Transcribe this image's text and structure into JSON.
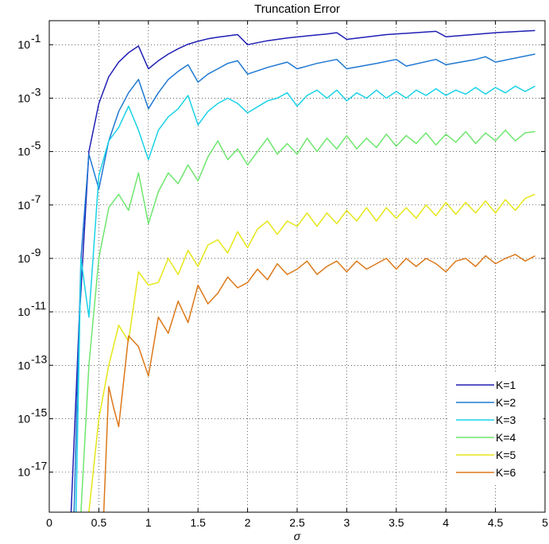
{
  "chart_data": {
    "type": "line",
    "title": "Truncation Error",
    "xlabel": "σ",
    "ylabel": "",
    "xlim": [
      0,
      5
    ],
    "ylim_log10": [
      -18.5,
      -0.1
    ],
    "yscale": "log",
    "grid": true,
    "legend_position": "bottom-right",
    "x_ticks": [
      "0",
      "0.5",
      "1",
      "1.5",
      "2",
      "2.5",
      "3",
      "3.5",
      "4",
      "4.5",
      "5"
    ],
    "y_ticks": [
      "10^-1",
      "10^-3",
      "10^-5",
      "10^-7",
      "10^-9",
      "10^-11",
      "10^-13",
      "10^-15",
      "10^-17"
    ],
    "series": [
      {
        "name": "K=1",
        "color": "#1f1fb4",
        "points": [
          [
            0.22,
            -18.5
          ],
          [
            0.3,
            -11.5
          ],
          [
            0.4,
            -5.0
          ],
          [
            0.5,
            -3.2
          ],
          [
            0.6,
            -2.2
          ],
          [
            0.7,
            -1.65
          ],
          [
            0.8,
            -1.3
          ],
          [
            0.9,
            -1.05
          ],
          [
            1.0,
            -1.9
          ],
          [
            1.1,
            -1.6
          ],
          [
            1.2,
            -1.35
          ],
          [
            1.3,
            -1.15
          ],
          [
            1.4,
            -0.98
          ],
          [
            1.5,
            -0.87
          ],
          [
            1.6,
            -0.78
          ],
          [
            1.7,
            -0.72
          ],
          [
            1.8,
            -0.67
          ],
          [
            1.9,
            -0.62
          ],
          [
            2.0,
            -1.0
          ],
          [
            2.2,
            -0.85
          ],
          [
            2.4,
            -0.75
          ],
          [
            2.6,
            -0.67
          ],
          [
            2.8,
            -0.6
          ],
          [
            2.9,
            -0.55
          ],
          [
            3.0,
            -0.8
          ],
          [
            3.4,
            -0.62
          ],
          [
            3.9,
            -0.5
          ],
          [
            4.0,
            -0.7
          ],
          [
            4.5,
            -0.55
          ],
          [
            4.9,
            -0.47
          ]
        ]
      },
      {
        "name": "K=2",
        "color": "#1f78d2",
        "points": [
          [
            0.25,
            -18.5
          ],
          [
            0.32,
            -9.0
          ],
          [
            0.4,
            -5.1
          ],
          [
            0.5,
            -6.4
          ],
          [
            0.6,
            -4.6
          ],
          [
            0.7,
            -3.5
          ],
          [
            0.8,
            -2.8
          ],
          [
            0.9,
            -2.3
          ],
          [
            1.0,
            -3.4
          ],
          [
            1.1,
            -2.8
          ],
          [
            1.2,
            -2.3
          ],
          [
            1.3,
            -2.0
          ],
          [
            1.4,
            -1.75
          ],
          [
            1.5,
            -2.4
          ],
          [
            1.6,
            -2.1
          ],
          [
            1.7,
            -1.9
          ],
          [
            1.8,
            -1.7
          ],
          [
            1.9,
            -1.6
          ],
          [
            2.0,
            -2.1
          ],
          [
            2.2,
            -1.85
          ],
          [
            2.4,
            -1.65
          ],
          [
            2.5,
            -1.9
          ],
          [
            2.7,
            -1.7
          ],
          [
            2.9,
            -1.55
          ],
          [
            3.0,
            -1.9
          ],
          [
            3.3,
            -1.7
          ],
          [
            3.5,
            -1.55
          ],
          [
            3.6,
            -1.8
          ],
          [
            3.9,
            -1.55
          ],
          [
            4.0,
            -1.75
          ],
          [
            4.3,
            -1.55
          ],
          [
            4.4,
            -1.45
          ],
          [
            4.5,
            -1.65
          ],
          [
            4.9,
            -1.35
          ]
        ]
      },
      {
        "name": "K=3",
        "color": "#19d2e6",
        "points": [
          [
            0.27,
            -18.5
          ],
          [
            0.32,
            -9.0
          ],
          [
            0.4,
            -11.2
          ],
          [
            0.5,
            -5.9
          ],
          [
            0.6,
            -4.6
          ],
          [
            0.7,
            -4.1
          ],
          [
            0.8,
            -3.3
          ],
          [
            0.9,
            -4.2
          ],
          [
            1.0,
            -5.3
          ],
          [
            1.1,
            -4.2
          ],
          [
            1.2,
            -3.7
          ],
          [
            1.3,
            -3.4
          ],
          [
            1.4,
            -2.9
          ],
          [
            1.5,
            -4.0
          ],
          [
            1.6,
            -3.5
          ],
          [
            1.7,
            -3.2
          ],
          [
            1.8,
            -3.0
          ],
          [
            1.9,
            -3.2
          ],
          [
            2.0,
            -3.55
          ],
          [
            2.2,
            -3.1
          ],
          [
            2.3,
            -3.0
          ],
          [
            2.4,
            -2.8
          ],
          [
            2.5,
            -3.3
          ],
          [
            2.6,
            -2.9
          ],
          [
            2.7,
            -2.7
          ],
          [
            2.8,
            -3.0
          ],
          [
            2.9,
            -2.7
          ],
          [
            3.0,
            -3.1
          ],
          [
            3.1,
            -2.8
          ],
          [
            3.2,
            -3.0
          ],
          [
            3.3,
            -2.7
          ],
          [
            3.4,
            -3.0
          ],
          [
            3.5,
            -2.75
          ],
          [
            3.6,
            -3.0
          ],
          [
            3.7,
            -2.7
          ],
          [
            3.8,
            -2.9
          ],
          [
            3.9,
            -2.65
          ],
          [
            4.0,
            -2.9
          ],
          [
            4.1,
            -2.7
          ],
          [
            4.2,
            -2.85
          ],
          [
            4.3,
            -2.6
          ],
          [
            4.4,
            -2.85
          ],
          [
            4.5,
            -2.6
          ],
          [
            4.6,
            -2.8
          ],
          [
            4.7,
            -2.55
          ],
          [
            4.8,
            -2.75
          ],
          [
            4.9,
            -2.55
          ]
        ]
      },
      {
        "name": "K=4",
        "color": "#6ee66e",
        "points": [
          [
            0.32,
            -18.5
          ],
          [
            0.4,
            -13.0
          ],
          [
            0.5,
            -9.0
          ],
          [
            0.6,
            -7.1
          ],
          [
            0.7,
            -6.6
          ],
          [
            0.8,
            -7.2
          ],
          [
            0.9,
            -5.8
          ],
          [
            1.0,
            -7.7
          ],
          [
            1.1,
            -6.5
          ],
          [
            1.2,
            -5.8
          ],
          [
            1.3,
            -6.2
          ],
          [
            1.4,
            -5.5
          ],
          [
            1.5,
            -6.1
          ],
          [
            1.6,
            -5.2
          ],
          [
            1.7,
            -4.6
          ],
          [
            1.8,
            -5.3
          ],
          [
            1.9,
            -4.9
          ],
          [
            2.0,
            -5.5
          ],
          [
            2.1,
            -5.0
          ],
          [
            2.2,
            -4.5
          ],
          [
            2.3,
            -5.1
          ],
          [
            2.4,
            -4.7
          ],
          [
            2.5,
            -5.1
          ],
          [
            2.6,
            -4.5
          ],
          [
            2.7,
            -5.0
          ],
          [
            2.8,
            -4.5
          ],
          [
            2.9,
            -4.9
          ],
          [
            3.0,
            -4.4
          ],
          [
            3.1,
            -4.9
          ],
          [
            3.2,
            -4.5
          ],
          [
            3.3,
            -4.85
          ],
          [
            3.4,
            -4.35
          ],
          [
            3.5,
            -4.8
          ],
          [
            3.6,
            -4.4
          ],
          [
            3.7,
            -4.7
          ],
          [
            3.8,
            -4.3
          ],
          [
            3.9,
            -4.75
          ],
          [
            4.0,
            -4.35
          ],
          [
            4.1,
            -4.65
          ],
          [
            4.2,
            -4.25
          ],
          [
            4.3,
            -4.7
          ],
          [
            4.4,
            -4.3
          ],
          [
            4.5,
            -4.6
          ],
          [
            4.6,
            -4.2
          ],
          [
            4.7,
            -4.6
          ],
          [
            4.8,
            -4.3
          ],
          [
            4.9,
            -4.25
          ]
        ]
      },
      {
        "name": "K=5",
        "color": "#e6e619",
        "points": [
          [
            0.4,
            -18.5
          ],
          [
            0.5,
            -15.0
          ],
          [
            0.6,
            -13.0
          ],
          [
            0.7,
            -11.5
          ],
          [
            0.8,
            -12.1
          ],
          [
            0.9,
            -9.5
          ],
          [
            1.0,
            -10.0
          ],
          [
            1.1,
            -9.9
          ],
          [
            1.2,
            -9.0
          ],
          [
            1.3,
            -9.6
          ],
          [
            1.4,
            -8.7
          ],
          [
            1.5,
            -9.3
          ],
          [
            1.6,
            -8.5
          ],
          [
            1.7,
            -8.3
          ],
          [
            1.8,
            -8.8
          ],
          [
            1.9,
            -8.0
          ],
          [
            2.0,
            -8.6
          ],
          [
            2.1,
            -7.9
          ],
          [
            2.2,
            -7.6
          ],
          [
            2.3,
            -8.1
          ],
          [
            2.4,
            -7.6
          ],
          [
            2.5,
            -7.8
          ],
          [
            2.6,
            -7.3
          ],
          [
            2.7,
            -7.8
          ],
          [
            2.8,
            -7.3
          ],
          [
            2.9,
            -7.7
          ],
          [
            3.0,
            -7.2
          ],
          [
            3.1,
            -7.6
          ],
          [
            3.2,
            -7.1
          ],
          [
            3.3,
            -7.6
          ],
          [
            3.4,
            -7.1
          ],
          [
            3.5,
            -7.5
          ],
          [
            3.6,
            -7.1
          ],
          [
            3.7,
            -7.5
          ],
          [
            3.8,
            -7.0
          ],
          [
            3.9,
            -7.4
          ],
          [
            4.0,
            -6.9
          ],
          [
            4.1,
            -7.35
          ],
          [
            4.2,
            -6.9
          ],
          [
            4.3,
            -7.3
          ],
          [
            4.4,
            -6.85
          ],
          [
            4.5,
            -7.3
          ],
          [
            4.6,
            -6.8
          ],
          [
            4.7,
            -7.2
          ],
          [
            4.8,
            -6.75
          ],
          [
            4.9,
            -6.6
          ]
        ]
      },
      {
        "name": "K=6",
        "color": "#dc7819",
        "points": [
          [
            0.55,
            -18.5
          ],
          [
            0.6,
            -13.8
          ],
          [
            0.65,
            -14.6
          ],
          [
            0.7,
            -15.3
          ],
          [
            0.8,
            -11.9
          ],
          [
            0.9,
            -12.3
          ],
          [
            1.0,
            -13.4
          ],
          [
            1.1,
            -11.2
          ],
          [
            1.2,
            -11.8
          ],
          [
            1.3,
            -10.6
          ],
          [
            1.4,
            -11.4
          ],
          [
            1.5,
            -10.0
          ],
          [
            1.6,
            -10.7
          ],
          [
            1.7,
            -10.3
          ],
          [
            1.8,
            -9.7
          ],
          [
            1.9,
            -10.1
          ],
          [
            2.0,
            -9.9
          ],
          [
            2.1,
            -9.4
          ],
          [
            2.2,
            -9.8
          ],
          [
            2.3,
            -9.2
          ],
          [
            2.4,
            -9.6
          ],
          [
            2.5,
            -9.4
          ],
          [
            2.6,
            -9.1
          ],
          [
            2.7,
            -9.6
          ],
          [
            2.8,
            -9.3
          ],
          [
            2.9,
            -9.1
          ],
          [
            3.0,
            -9.5
          ],
          [
            3.1,
            -9.1
          ],
          [
            3.2,
            -9.4
          ],
          [
            3.3,
            -9.2
          ],
          [
            3.4,
            -9.0
          ],
          [
            3.5,
            -9.4
          ],
          [
            3.6,
            -9.0
          ],
          [
            3.7,
            -9.3
          ],
          [
            3.8,
            -9.0
          ],
          [
            3.9,
            -9.2
          ],
          [
            4.0,
            -9.5
          ],
          [
            4.1,
            -9.1
          ],
          [
            4.2,
            -9.0
          ],
          [
            4.3,
            -9.3
          ],
          [
            4.4,
            -8.9
          ],
          [
            4.5,
            -9.2
          ],
          [
            4.6,
            -9.0
          ],
          [
            4.7,
            -8.85
          ],
          [
            4.8,
            -9.1
          ],
          [
            4.9,
            -8.9
          ]
        ]
      }
    ]
  }
}
